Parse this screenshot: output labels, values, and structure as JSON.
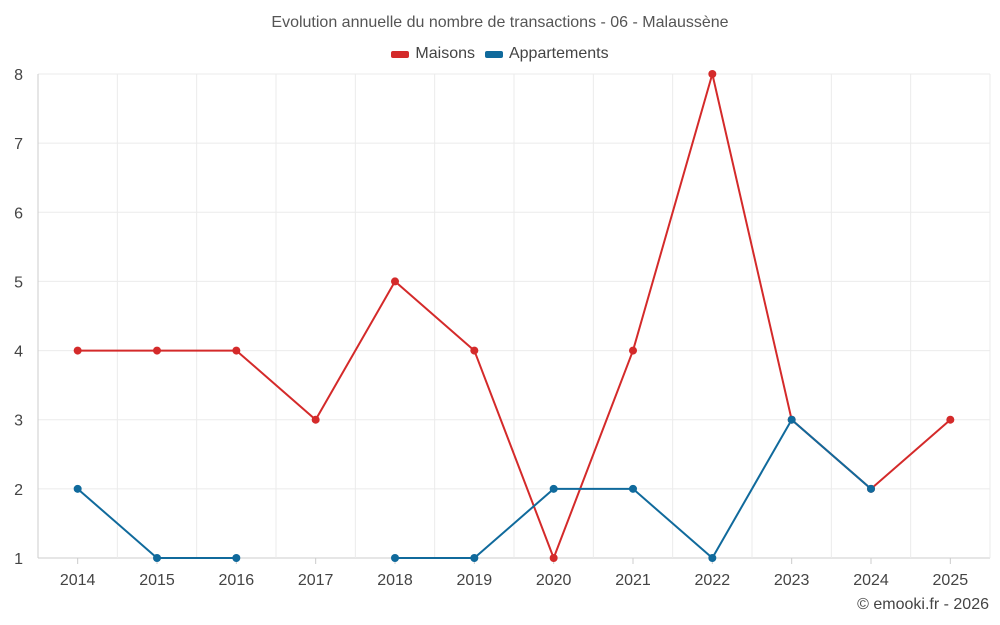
{
  "chart_data": {
    "type": "line",
    "title": "Evolution annuelle du nombre de transactions - 06 - Malaussène",
    "x": [
      "2014",
      "2015",
      "2016",
      "2017",
      "2018",
      "2019",
      "2020",
      "2021",
      "2022",
      "2023",
      "2024",
      "2025"
    ],
    "series": [
      {
        "name": "Maisons",
        "color": "#d42a2a",
        "values": [
          4,
          4,
          4,
          3,
          5,
          4,
          1,
          4,
          8,
          3,
          2,
          3
        ]
      },
      {
        "name": "Appartements",
        "color": "#106a9c",
        "values": [
          2,
          1,
          1,
          null,
          1,
          1,
          2,
          2,
          1,
          3,
          2,
          null
        ]
      }
    ],
    "yticks": [
      1,
      2,
      3,
      4,
      5,
      6,
      7,
      8
    ],
    "ylim": [
      1,
      8
    ],
    "grid": true,
    "legend_position": "top-center",
    "credit": "© emooki.fr - 2026"
  }
}
